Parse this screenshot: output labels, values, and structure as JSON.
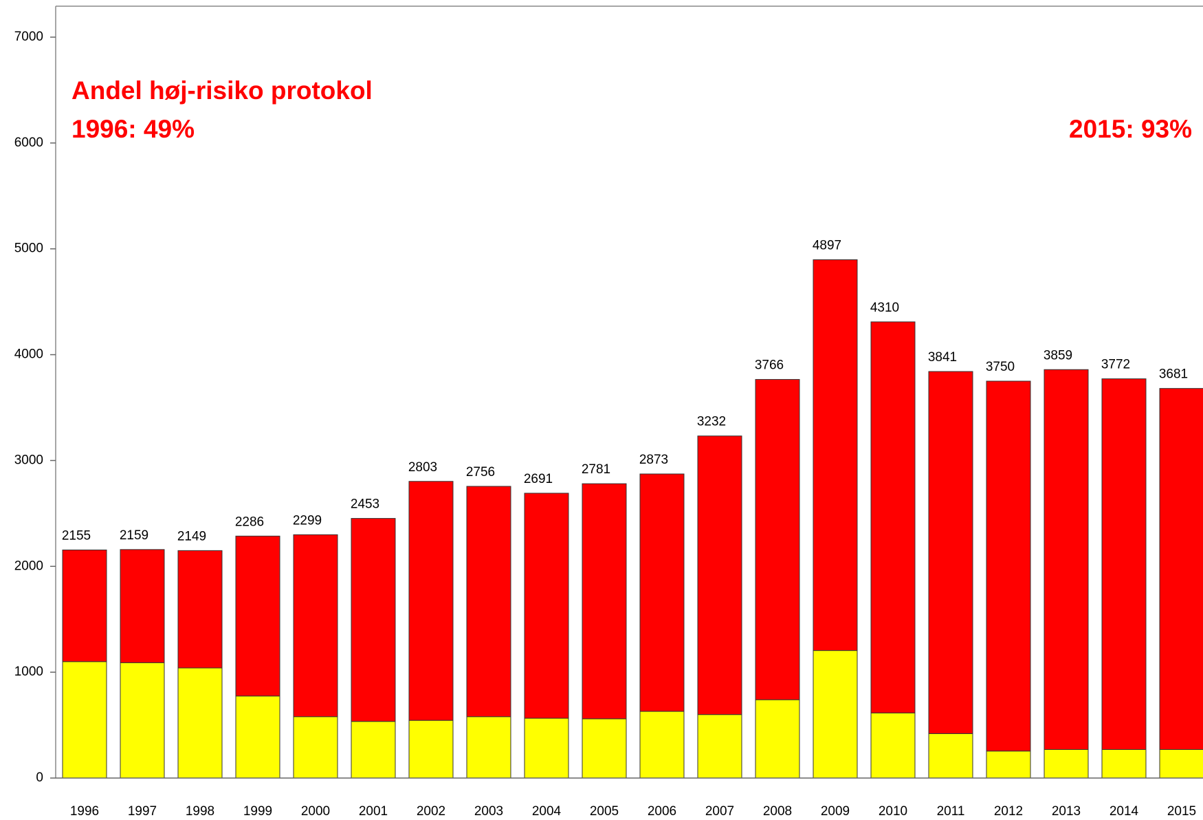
{
  "chart_data": {
    "type": "stacked_bar",
    "annotations": [
      "Andel høj-risiko protokol",
      "1996: 49%",
      "2015: 93%"
    ],
    "categories": [
      "1996",
      "1997",
      "1998",
      "1999",
      "2000",
      "2001",
      "2002",
      "2003",
      "2004",
      "2005",
      "2006",
      "2007",
      "2008",
      "2009",
      "2010",
      "2011",
      "2012",
      "2013",
      "2014",
      "2015"
    ],
    "series": [
      {
        "color": "#ffff00",
        "values": [
          1100,
          1090,
          1040,
          775,
          580,
          535,
          545,
          580,
          565,
          560,
          630,
          600,
          740,
          1205,
          615,
          420,
          255,
          270,
          270,
          270
        ]
      },
      {
        "color": "#ff0000",
        "values": [
          1055,
          1069,
          1109,
          1511,
          1719,
          1918,
          2258,
          2176,
          2126,
          2221,
          2243,
          2632,
          3026,
          3692,
          3695,
          3421,
          3495,
          3589,
          3502,
          3411
        ]
      }
    ],
    "totals": [
      2155,
      2159,
      2149,
      2286,
      2299,
      2453,
      2803,
      2756,
      2691,
      2781,
      2873,
      3232,
      3766,
      4897,
      4310,
      3841,
      3750,
      3859,
      3772,
      3681
    ],
    "ylim": [
      0,
      7000
    ],
    "yticks": [
      0,
      1000,
      2000,
      3000,
      4000,
      5000,
      6000,
      7000
    ]
  }
}
